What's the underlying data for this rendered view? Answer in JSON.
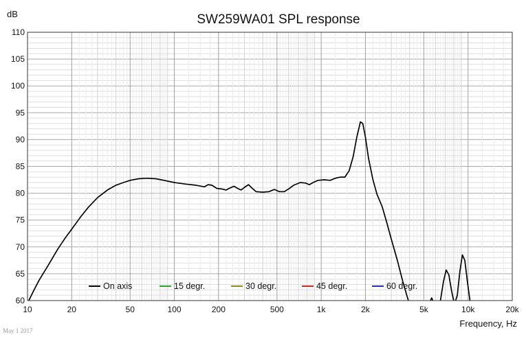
{
  "chart_data": {
    "type": "line",
    "title": "SW259WA01 SPL response",
    "ylabel": "dB",
    "xlabel": "Frequency, Hz",
    "x_scale": "log",
    "xlim": [
      10,
      20000
    ],
    "ylim": [
      60,
      110
    ],
    "grid": true,
    "x_ticks": [
      "10",
      "20",
      "50",
      "100",
      "200",
      "500",
      "1k",
      "2k",
      "5k",
      "10k",
      "20k"
    ],
    "x_tick_values": [
      10,
      20,
      50,
      100,
      200,
      500,
      1000,
      2000,
      5000,
      10000,
      20000
    ],
    "y_ticks": [
      60,
      65,
      70,
      75,
      80,
      85,
      90,
      95,
      100,
      105,
      110
    ],
    "legend_placement": "bottom",
    "series": [
      {
        "name": "On axis",
        "color": "#000000",
        "points": [
          [
            10,
            59.5
          ],
          [
            11,
            61.8
          ],
          [
            12,
            63.8
          ],
          [
            14,
            66.8
          ],
          [
            16,
            69.5
          ],
          [
            18,
            71.6
          ],
          [
            20,
            73.3
          ],
          [
            23,
            75.6
          ],
          [
            26,
            77.4
          ],
          [
            30,
            79.2
          ],
          [
            35,
            80.6
          ],
          [
            40,
            81.5
          ],
          [
            45,
            82.0
          ],
          [
            50,
            82.4
          ],
          [
            57,
            82.7
          ],
          [
            65,
            82.8
          ],
          [
            75,
            82.7
          ],
          [
            85,
            82.4
          ],
          [
            100,
            82.0
          ],
          [
            120,
            81.7
          ],
          [
            140,
            81.5
          ],
          [
            160,
            81.2
          ],
          [
            170,
            81.6
          ],
          [
            180,
            81.5
          ],
          [
            195,
            80.9
          ],
          [
            210,
            80.8
          ],
          [
            225,
            80.6
          ],
          [
            240,
            81.0
          ],
          [
            255,
            81.3
          ],
          [
            270,
            80.9
          ],
          [
            285,
            80.6
          ],
          [
            300,
            81.1
          ],
          [
            320,
            81.6
          ],
          [
            340,
            80.9
          ],
          [
            360,
            80.3
          ],
          [
            400,
            80.2
          ],
          [
            440,
            80.3
          ],
          [
            480,
            80.7
          ],
          [
            520,
            80.3
          ],
          [
            560,
            80.3
          ],
          [
            600,
            80.8
          ],
          [
            650,
            81.5
          ],
          [
            720,
            82.0
          ],
          [
            780,
            81.9
          ],
          [
            830,
            81.6
          ],
          [
            880,
            82.0
          ],
          [
            950,
            82.4
          ],
          [
            1050,
            82.5
          ],
          [
            1150,
            82.4
          ],
          [
            1250,
            82.8
          ],
          [
            1350,
            83.0
          ],
          [
            1450,
            83.0
          ],
          [
            1550,
            84.2
          ],
          [
            1650,
            86.8
          ],
          [
            1750,
            90.5
          ],
          [
            1850,
            93.3
          ],
          [
            1920,
            93.0
          ],
          [
            2000,
            90.5
          ],
          [
            2100,
            86.5
          ],
          [
            2250,
            82.5
          ],
          [
            2400,
            79.8
          ],
          [
            2600,
            77.5
          ],
          [
            2800,
            74.5
          ],
          [
            3000,
            71.5
          ],
          [
            3300,
            67.5
          ],
          [
            3600,
            63.5
          ],
          [
            3900,
            60.2
          ],
          [
            4100,
            58.5
          ],
          [
            5400,
            58.5
          ],
          [
            5550,
            60.0
          ],
          [
            5650,
            60.5
          ],
          [
            5750,
            60.0
          ],
          [
            5850,
            58.5
          ],
          [
            6300,
            58.5
          ],
          [
            6500,
            60.2
          ],
          [
            6800,
            63.5
          ],
          [
            7100,
            65.7
          ],
          [
            7400,
            64.8
          ],
          [
            7700,
            62.0
          ],
          [
            7950,
            60.2
          ],
          [
            8150,
            59.6
          ],
          [
            8450,
            61.0
          ],
          [
            8800,
            65.5
          ],
          [
            9150,
            68.5
          ],
          [
            9500,
            67.5
          ],
          [
            9900,
            63.5
          ],
          [
            10300,
            60.0
          ],
          [
            10600,
            58.5
          ]
        ]
      },
      {
        "name": "15 degr.",
        "color": "#2ea02e",
        "points": []
      },
      {
        "name": "30 degr.",
        "color": "#8a8a1e",
        "points": []
      },
      {
        "name": "45 degr.",
        "color": "#c42a2a",
        "points": []
      },
      {
        "name": "60 degr.",
        "color": "#2a2ac0",
        "points": []
      }
    ]
  },
  "footnote": "May 1 2017"
}
